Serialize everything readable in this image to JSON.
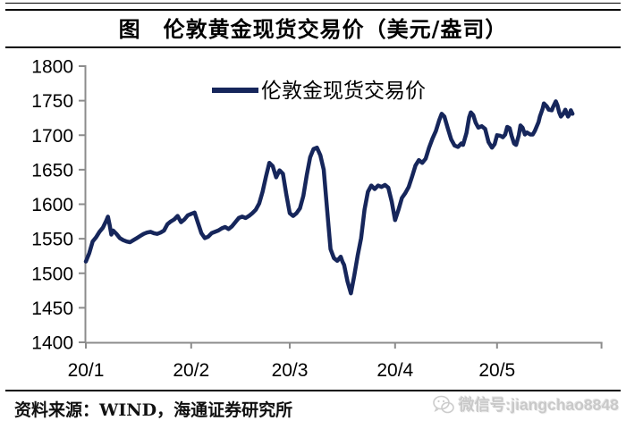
{
  "header": {
    "title": "图　伦敦黄金现货交易价（美元/盎司）"
  },
  "footer": {
    "source": "资料来源：WIND，海通证券研究所"
  },
  "watermark": {
    "icon": "wechat-icon",
    "text": "微信号:jiangchao8848"
  },
  "colors": {
    "line": "#16265B",
    "axis": "#8C8C8C",
    "tick_label": "#000000",
    "watermark": "#C9C9C9"
  },
  "chart_data": {
    "type": "line",
    "title": "图　伦敦黄金现货交易价（美元/盎司）",
    "unit": "美元/盎司",
    "legend": {
      "label": "伦敦金现货交易价",
      "position": "top-center"
    },
    "grid": false,
    "ylim": [
      1400,
      1800
    ],
    "yticks": [
      1400,
      1450,
      1500,
      1550,
      1600,
      1650,
      1700,
      1750,
      1800
    ],
    "xticks": [
      {
        "label": "20/1",
        "day": 0
      },
      {
        "label": "20/2",
        "day": 31
      },
      {
        "label": "20/3",
        "day": 60
      },
      {
        "label": "20/4",
        "day": 91
      },
      {
        "label": "20/5",
        "day": 121
      }
    ],
    "x_axis_end_day": 152,
    "series": [
      {
        "name": "伦敦金现货交易价",
        "color": "#16265B",
        "points": [
          [
            0,
            1517
          ],
          [
            1,
            1529
          ],
          [
            2,
            1546
          ],
          [
            3,
            1552
          ],
          [
            4,
            1560
          ],
          [
            5,
            1566
          ],
          [
            6,
            1576
          ],
          [
            6.5,
            1582
          ],
          [
            7,
            1570
          ],
          [
            7.5,
            1556
          ],
          [
            8,
            1562
          ],
          [
            9,
            1557
          ],
          [
            10,
            1551
          ],
          [
            11,
            1548
          ],
          [
            12,
            1546
          ],
          [
            13,
            1545
          ],
          [
            14,
            1548
          ],
          [
            15,
            1551
          ],
          [
            16,
            1554
          ],
          [
            17,
            1557
          ],
          [
            18,
            1559
          ],
          [
            19,
            1560
          ],
          [
            20,
            1558
          ],
          [
            21,
            1557
          ],
          [
            22,
            1559
          ],
          [
            23,
            1562
          ],
          [
            24,
            1571
          ],
          [
            25,
            1575
          ],
          [
            26,
            1578
          ],
          [
            27,
            1583
          ],
          [
            28,
            1574
          ],
          [
            29,
            1578
          ],
          [
            30,
            1584
          ],
          [
            31,
            1586
          ],
          [
            32,
            1588
          ],
          [
            33,
            1573
          ],
          [
            34,
            1558
          ],
          [
            35,
            1551
          ],
          [
            36,
            1553
          ],
          [
            37,
            1558
          ],
          [
            38,
            1560
          ],
          [
            39,
            1562
          ],
          [
            40,
            1565
          ],
          [
            41,
            1567
          ],
          [
            42,
            1564
          ],
          [
            43,
            1568
          ],
          [
            44,
            1574
          ],
          [
            45,
            1580
          ],
          [
            46,
            1582
          ],
          [
            47,
            1580
          ],
          [
            48,
            1583
          ],
          [
            49,
            1587
          ],
          [
            50,
            1592
          ],
          [
            51,
            1601
          ],
          [
            52,
            1618
          ],
          [
            53,
            1640
          ],
          [
            54,
            1660
          ],
          [
            55,
            1655
          ],
          [
            56,
            1639
          ],
          [
            57,
            1649
          ],
          [
            58,
            1644
          ],
          [
            59,
            1614
          ],
          [
            60,
            1587
          ],
          [
            61,
            1583
          ],
          [
            62,
            1587
          ],
          [
            63,
            1594
          ],
          [
            64,
            1612
          ],
          [
            65,
            1642
          ],
          [
            66,
            1668
          ],
          [
            67,
            1680
          ],
          [
            68,
            1682
          ],
          [
            69,
            1671
          ],
          [
            70,
            1650
          ],
          [
            71,
            1592
          ],
          [
            72,
            1535
          ],
          [
            73,
            1522
          ],
          [
            74,
            1518
          ],
          [
            75,
            1524
          ],
          [
            75.5,
            1517
          ],
          [
            76,
            1512
          ],
          [
            77,
            1488
          ],
          [
            78,
            1471
          ],
          [
            79,
            1497
          ],
          [
            80,
            1526
          ],
          [
            81,
            1551
          ],
          [
            82,
            1592
          ],
          [
            83,
            1618
          ],
          [
            84,
            1627
          ],
          [
            85,
            1622
          ],
          [
            86,
            1627
          ],
          [
            87,
            1625
          ],
          [
            88,
            1628
          ],
          [
            89,
            1624
          ],
          [
            90,
            1604
          ],
          [
            91,
            1577
          ],
          [
            92,
            1592
          ],
          [
            93,
            1609
          ],
          [
            94,
            1616
          ],
          [
            95,
            1625
          ],
          [
            96,
            1640
          ],
          [
            97,
            1656
          ],
          [
            98,
            1664
          ],
          [
            99,
            1660
          ],
          [
            100,
            1666
          ],
          [
            101,
            1682
          ],
          [
            102,
            1695
          ],
          [
            103,
            1706
          ],
          [
            104,
            1722
          ],
          [
            104.7,
            1731
          ],
          [
            105.5,
            1727
          ],
          [
            106.5,
            1710
          ],
          [
            107.5,
            1694
          ],
          [
            108.5,
            1685
          ],
          [
            109.5,
            1683
          ],
          [
            110.5,
            1688
          ],
          [
            111,
            1686
          ],
          [
            112,
            1703
          ],
          [
            112.8,
            1726
          ],
          [
            113.3,
            1733
          ],
          [
            114,
            1729
          ],
          [
            114.7,
            1718
          ],
          [
            115.5,
            1711
          ],
          [
            116.5,
            1713
          ],
          [
            117.5,
            1709
          ],
          [
            118.5,
            1690
          ],
          [
            119.5,
            1682
          ],
          [
            120.3,
            1687
          ],
          [
            121,
            1700
          ],
          [
            122,
            1699
          ],
          [
            122.7,
            1697
          ],
          [
            123.4,
            1701
          ],
          [
            124,
            1712
          ],
          [
            124.7,
            1710
          ],
          [
            125.3,
            1699
          ],
          [
            126,
            1688
          ],
          [
            126.6,
            1686
          ],
          [
            127.4,
            1700
          ],
          [
            127.9,
            1714
          ],
          [
            128.5,
            1711
          ],
          [
            129.2,
            1701
          ],
          [
            129.8,
            1704
          ],
          [
            130.8,
            1701
          ],
          [
            131.5,
            1701
          ],
          [
            132.1,
            1706
          ],
          [
            133.2,
            1719
          ],
          [
            133.6,
            1727
          ],
          [
            134.4,
            1738
          ],
          [
            134.8,
            1746
          ],
          [
            135.6,
            1742
          ],
          [
            136.2,
            1737
          ],
          [
            137.1,
            1736
          ],
          [
            137.5,
            1741
          ],
          [
            138.3,
            1749
          ],
          [
            138.8,
            1743
          ],
          [
            139.3,
            1733
          ],
          [
            139.8,
            1727
          ],
          [
            140.5,
            1731
          ],
          [
            141.1,
            1737
          ],
          [
            141.4,
            1733
          ],
          [
            141.9,
            1727
          ],
          [
            142.3,
            1730
          ],
          [
            142.7,
            1736
          ],
          [
            143.2,
            1731
          ]
        ]
      }
    ]
  }
}
